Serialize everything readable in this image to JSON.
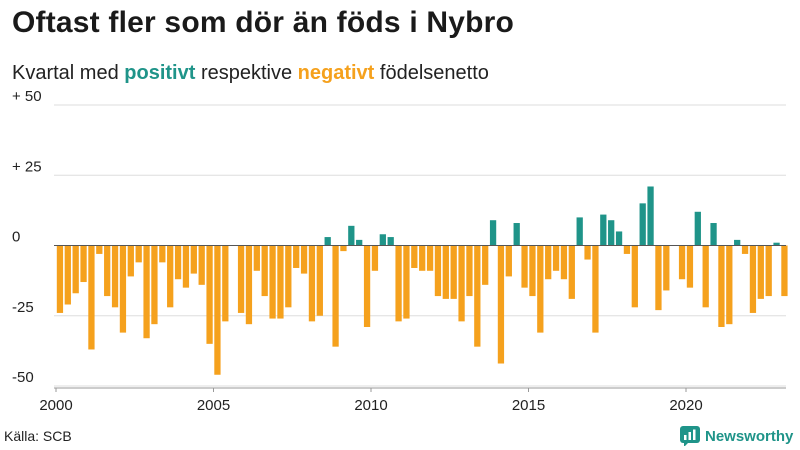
{
  "title": "Oftast fler som dör än föds i Nybro",
  "subtitle": {
    "prefix": "Kvartal med ",
    "positive_word": "positivt",
    "middle": " respektive ",
    "negative_word": "negativt",
    "suffix": " födelsenetto"
  },
  "source": "Källa: SCB",
  "brand": {
    "name": "Newsworthy",
    "icon": "newsworthy-logo-icon"
  },
  "colors": {
    "positive": "#1f9489",
    "negative": "#f5a11d",
    "grid": "#dddddd",
    "zero_line": "#555555"
  },
  "chart_data": {
    "type": "bar",
    "title": "Oftast fler som dör än föds i Nybro",
    "subtitle": "Kvartal med positivt respektive negativt födelsenetto",
    "xlabel": "",
    "ylabel": "",
    "ylim": [
      -50,
      50
    ],
    "y_ticks": [
      50,
      25,
      0,
      -25,
      -50
    ],
    "y_tick_labels": [
      "+ 50",
      "+ 25",
      "0",
      "-25",
      "-50"
    ],
    "x_ticks": [
      2000,
      2005,
      2010,
      2015,
      2020
    ],
    "x_tick_labels": [
      "2000",
      "2005",
      "2010",
      "2015",
      "2020"
    ],
    "grid": true,
    "start_year": 2000,
    "start_quarter": 1,
    "series": [
      {
        "values": [
          -24,
          -21,
          -17,
          -13,
          -37,
          -3,
          -18,
          -22,
          -31,
          -11,
          -6,
          -33,
          -28,
          -6,
          -22,
          -12,
          -15,
          -10,
          -14,
          -35,
          -46,
          -27,
          0,
          -24,
          -28,
          -9,
          -18,
          -26,
          -26,
          -22,
          -8,
          -10,
          -27,
          -25,
          3,
          -36,
          -2,
          7,
          2,
          -29,
          -9,
          4,
          3,
          -27,
          -26,
          -8,
          -9,
          -9,
          -18,
          -19,
          -19,
          -27,
          -18,
          -36,
          -14,
          9,
          -42,
          -11,
          8,
          -15,
          -18,
          -31,
          -12,
          -9,
          -12,
          -19,
          10,
          -5,
          -31,
          11,
          9,
          5,
          -3,
          -22,
          15,
          21,
          -23,
          -16,
          0,
          -12,
          -15,
          12,
          -22,
          8,
          -29,
          -28,
          2,
          -3,
          -24,
          -19,
          -18,
          1,
          -18
        ]
      }
    ]
  }
}
